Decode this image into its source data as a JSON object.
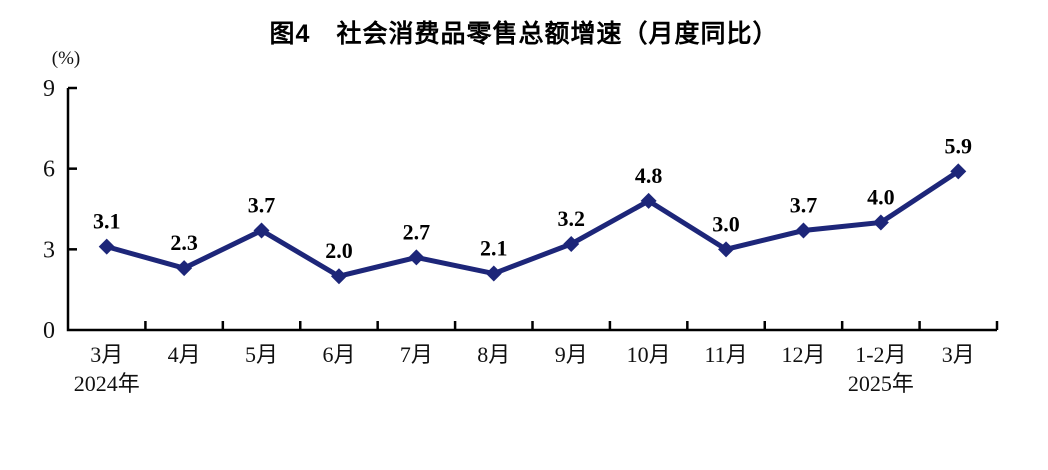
{
  "page": {
    "background": "#ffffff"
  },
  "chart_data": {
    "type": "line",
    "title": "图4　社会消费品零售总额增速（月度同比）",
    "unit_label": "(%)",
    "categories": [
      "3月",
      "4月",
      "5月",
      "6月",
      "7月",
      "8月",
      "9月",
      "10月",
      "11月",
      "12月",
      "1-2月",
      "3月"
    ],
    "values": [
      3.1,
      2.3,
      3.7,
      2.0,
      2.7,
      2.1,
      3.2,
      4.8,
      3.0,
      3.7,
      4.0,
      5.9
    ],
    "year_markers": [
      {
        "index": 0,
        "label": "2024年"
      },
      {
        "index": 10,
        "label": "2025年"
      }
    ],
    "ylim": [
      0,
      9
    ],
    "yticks": [
      0,
      3,
      6,
      9
    ],
    "grid": false,
    "legend": "none",
    "marker": "diamond",
    "line_color": "#1d2679",
    "axis_color": "#000000",
    "text_color": "#000000"
  }
}
